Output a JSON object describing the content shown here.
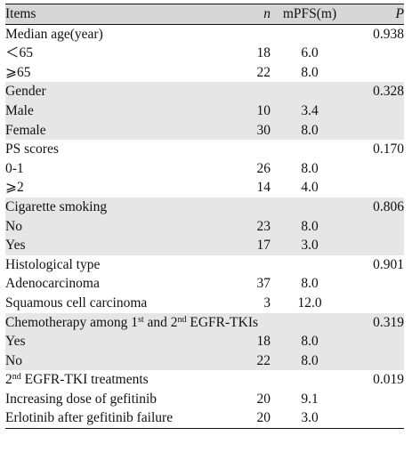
{
  "header": {
    "items": "Items",
    "n": "n",
    "mpfs": "mPFS(m)",
    "p": "P"
  },
  "groups": [
    {
      "label": "Median age(year)",
      "p": "0.938",
      "shade": false,
      "rows": [
        {
          "label": "＜65",
          "n": "18",
          "mpfs": "6.0"
        },
        {
          "label": "⩾65",
          "n": "22",
          "mpfs": "8.0"
        }
      ]
    },
    {
      "label": "Gender",
      "p": "0.328",
      "shade": true,
      "rows": [
        {
          "label": "Male",
          "n": "10",
          "mpfs": "3.4"
        },
        {
          "label": "Female",
          "n": "30",
          "mpfs": "8.0"
        }
      ]
    },
    {
      "label": "PS scores",
      "p": "0.170",
      "shade": false,
      "rows": [
        {
          "label": "0-1",
          "n": "26",
          "mpfs": "8.0"
        },
        {
          "label": "⩾2",
          "n": "14",
          "mpfs": "4.0"
        }
      ]
    },
    {
      "label": "Cigarette smoking",
      "p": "0.806",
      "shade": true,
      "rows": [
        {
          "label": "No",
          "n": "23",
          "mpfs": "8.0"
        },
        {
          "label": "Yes",
          "n": "17",
          "mpfs": "3.0"
        }
      ]
    },
    {
      "label": "Histological type",
      "p": "0.901",
      "shade": false,
      "rows": [
        {
          "label": "Adenocarcinoma",
          "n": "37",
          "mpfs": "8.0"
        },
        {
          "label": "Squamous cell carcinoma",
          "n": "3",
          "mpfs": "12.0"
        }
      ]
    },
    {
      "label_parts": [
        "Chemotherapy among 1",
        "st",
        " and 2",
        "nd",
        " EGFR-TKIs"
      ],
      "p": "0.319",
      "shade": true,
      "two_line": true,
      "rows": [
        {
          "label": "Yes",
          "n": "18",
          "mpfs": "8.0"
        },
        {
          "label": "No",
          "n": "22",
          "mpfs": "8.0"
        }
      ]
    },
    {
      "label_parts": [
        "2",
        "nd",
        " EGFR-TKI treatments"
      ],
      "p": "0.019",
      "shade": false,
      "rows": [
        {
          "label": "Increasing dose of gefitinib",
          "n": "20",
          "mpfs": "9.1"
        },
        {
          "label": "Erlotinib after gefitinib failure",
          "n": "20",
          "mpfs": "3.0"
        }
      ]
    }
  ]
}
